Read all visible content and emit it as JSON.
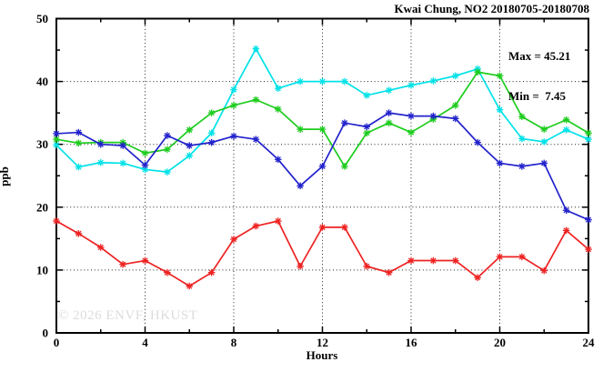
{
  "title": "Kwai Chung, NO2 20180705-20180708",
  "stats": {
    "max_label": "Max = 45.21",
    "min_label": "Min =  7.45"
  },
  "watermark": "© 2026 ENVF, HKUST",
  "colors": {
    "axis": "#000000",
    "grid": "#222222",
    "watermark": "#dcdcdc",
    "background": "#ffffff"
  },
  "chart_data": {
    "type": "line",
    "title": "Kwai Chung, NO2 20180705-20180708",
    "xlabel": "Hours",
    "ylabel": "ppb",
    "xlim": [
      0,
      24
    ],
    "ylim": [
      0,
      50
    ],
    "x_major_ticks": [
      0,
      4,
      8,
      12,
      16,
      20,
      24
    ],
    "x_minor_ticks": [
      2,
      6,
      10,
      14,
      18,
      22
    ],
    "y_major_ticks": [
      0,
      10,
      20,
      30,
      40,
      50
    ],
    "y_minor_ticks": [
      5,
      15,
      25,
      35,
      45
    ],
    "grid": "dotted-at-major-ticks",
    "legend_position": "none",
    "annotations": {
      "max": 45.21,
      "min": 7.45
    },
    "marker": "asterisk",
    "x": [
      0,
      1,
      2,
      3,
      4,
      5,
      6,
      7,
      8,
      9,
      10,
      11,
      12,
      13,
      14,
      15,
      16,
      17,
      18,
      19,
      20,
      21,
      22,
      23,
      24
    ],
    "series": [
      {
        "name": "cyan-line",
        "color": "#00e2e8",
        "values": [
          29.9,
          26.4,
          27.1,
          27.0,
          26.0,
          25.6,
          28.2,
          31.8,
          38.7,
          45.21,
          38.9,
          40.0,
          40.0,
          40.0,
          37.8,
          38.6,
          39.4,
          40.1,
          40.9,
          42.0,
          35.5,
          30.9,
          30.4,
          32.3,
          30.8
        ]
      },
      {
        "name": "green-line",
        "color": "#1ecc1e",
        "values": [
          30.8,
          30.2,
          30.3,
          30.3,
          28.6,
          29.2,
          32.3,
          35.0,
          36.2,
          37.1,
          35.6,
          32.4,
          32.4,
          26.5,
          31.8,
          33.4,
          31.9,
          34.0,
          36.2,
          41.5,
          40.9,
          34.4,
          32.4,
          33.9,
          31.8
        ]
      },
      {
        "name": "blue-line",
        "color": "#2222cc",
        "values": [
          31.7,
          31.9,
          30.0,
          29.8,
          26.7,
          31.4,
          29.8,
          30.3,
          31.3,
          30.8,
          27.6,
          23.4,
          26.5,
          33.4,
          32.8,
          35.0,
          34.5,
          34.5,
          34.1,
          30.3,
          27.0,
          26.5,
          27.0,
          19.5,
          18.0
        ]
      },
      {
        "name": "red-line",
        "color": "#ee2222",
        "values": [
          17.8,
          15.8,
          13.6,
          10.9,
          11.5,
          9.6,
          7.45,
          9.6,
          14.9,
          17.0,
          17.8,
          10.6,
          16.8,
          16.8,
          10.6,
          9.6,
          11.5,
          11.5,
          11.5,
          8.8,
          12.1,
          12.1,
          9.9,
          16.3,
          13.3
        ]
      }
    ]
  }
}
